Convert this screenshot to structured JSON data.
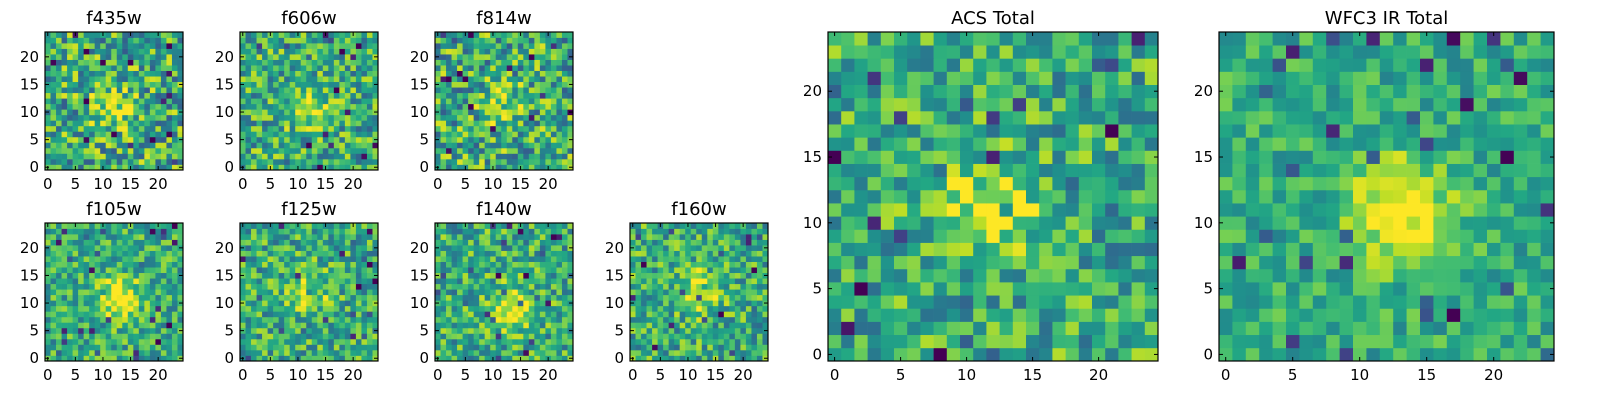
{
  "chart_data": [
    {
      "type": "heatmap",
      "title": "f435w",
      "grid_size": 25,
      "xticks": [
        "0",
        "5",
        "10",
        "15",
        "20"
      ],
      "yticks": [
        "0",
        "5",
        "10",
        "15",
        "20"
      ],
      "peak": [
        12,
        11
      ],
      "peak_strength": 0.25,
      "noise": 0.55,
      "colormap": "viridis"
    },
    {
      "type": "heatmap",
      "title": "f606w",
      "grid_size": 25,
      "xticks": [
        "0",
        "5",
        "10",
        "15",
        "20"
      ],
      "yticks": [
        "0",
        "5",
        "10",
        "15",
        "20"
      ],
      "peak": [
        12,
        11
      ],
      "peak_strength": 0.35,
      "noise": 0.5,
      "colormap": "viridis"
    },
    {
      "type": "heatmap",
      "title": "f814w",
      "grid_size": 25,
      "xticks": [
        "0",
        "5",
        "10",
        "15",
        "20"
      ],
      "yticks": [
        "0",
        "5",
        "10",
        "15",
        "20"
      ],
      "peak": [
        12,
        11
      ],
      "peak_strength": 0.2,
      "noise": 0.55,
      "colormap": "viridis"
    },
    {
      "type": "heatmap",
      "title": "f105w",
      "grid_size": 25,
      "xticks": [
        "0",
        "5",
        "10",
        "15",
        "20"
      ],
      "yticks": [
        "0",
        "5",
        "10",
        "15",
        "20"
      ],
      "peak": [
        13,
        11
      ],
      "peak_strength": 0.45,
      "noise": 0.4,
      "colormap": "viridis"
    },
    {
      "type": "heatmap",
      "title": "f125w",
      "grid_size": 25,
      "xticks": [
        "0",
        "5",
        "10",
        "15",
        "20"
      ],
      "yticks": [
        "0",
        "5",
        "10",
        "15",
        "20"
      ],
      "peak": [
        12,
        12
      ],
      "peak_strength": 0.3,
      "noise": 0.45,
      "colormap": "viridis"
    },
    {
      "type": "heatmap",
      "title": "f140w",
      "grid_size": 25,
      "xticks": [
        "0",
        "5",
        "10",
        "15",
        "20"
      ],
      "yticks": [
        "0",
        "5",
        "10",
        "15",
        "20"
      ],
      "peak": [
        13,
        9
      ],
      "peak_strength": 0.4,
      "noise": 0.45,
      "colormap": "viridis"
    },
    {
      "type": "heatmap",
      "title": "f160w",
      "grid_size": 25,
      "xticks": [
        "0",
        "5",
        "10",
        "15",
        "20"
      ],
      "yticks": [
        "0",
        "5",
        "10",
        "15",
        "20"
      ],
      "peak": [
        12,
        12
      ],
      "peak_strength": 0.35,
      "noise": 0.45,
      "colormap": "viridis"
    },
    {
      "type": "heatmap",
      "title": "ACS Total",
      "grid_size": 25,
      "xticks": [
        "0",
        "5",
        "10",
        "15",
        "20"
      ],
      "yticks": [
        "0",
        "5",
        "10",
        "15",
        "20"
      ],
      "peak": [
        12,
        11
      ],
      "peak_strength": 0.35,
      "noise": 0.45,
      "colormap": "viridis"
    },
    {
      "type": "heatmap",
      "title": "WFC3 IR Total",
      "grid_size": 25,
      "xticks": [
        "0",
        "5",
        "10",
        "15",
        "20"
      ],
      "yticks": [
        "0",
        "5",
        "10",
        "15",
        "20"
      ],
      "peak": [
        13,
        11
      ],
      "peak_strength": 0.5,
      "noise": 0.3,
      "colormap": "viridis"
    }
  ]
}
